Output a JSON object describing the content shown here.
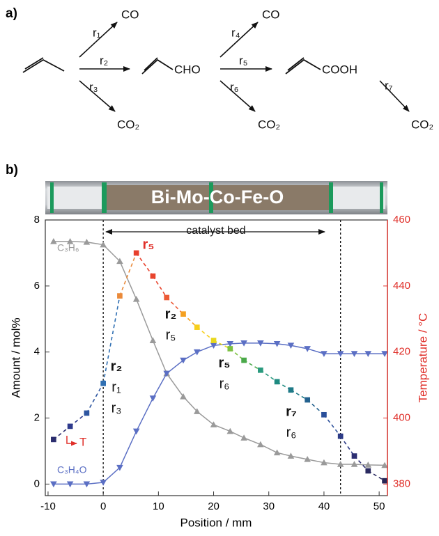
{
  "scheme": {
    "label": "a)",
    "rates": [
      "r₁",
      "r₂",
      "r₃",
      "r₄",
      "r₅",
      "r₆",
      "r₇"
    ],
    "products": [
      "CO",
      "CO₂",
      "CHO",
      "CO",
      "CO₂",
      "COOH",
      "CO₂"
    ]
  },
  "chart_data": {
    "type": "line",
    "panel_label": "b)",
    "photo_label": "Bi-Mo-Co-Fe-O",
    "x_label": "Position / mm",
    "y_label": "Amount / mol%",
    "y2_label": "Temperature / °C",
    "x": [
      -9,
      -6,
      -3,
      0,
      3,
      6,
      9,
      11.5,
      14.5,
      17,
      20,
      23,
      25.5,
      28.5,
      31.5,
      34,
      37,
      40,
      43,
      45.5,
      48,
      51
    ],
    "series": [
      {
        "name": "C₃H₆",
        "color": "#9a9a9a",
        "marker": "triangle-up",
        "values": [
          7.35,
          7.35,
          7.33,
          7.25,
          6.75,
          5.6,
          4.35,
          3.35,
          2.65,
          2.2,
          1.8,
          1.6,
          1.4,
          1.2,
          0.95,
          0.85,
          0.75,
          0.65,
          0.6,
          0.6,
          0.58,
          0.57
        ]
      },
      {
        "name": "C₃H₄O",
        "color": "#5b6fc4",
        "marker": "triangle-down",
        "values": [
          0,
          0,
          0,
          0.05,
          0.5,
          1.6,
          2.6,
          3.35,
          3.75,
          4.0,
          4.2,
          4.25,
          4.27,
          4.27,
          4.25,
          4.2,
          4.1,
          3.95,
          3.95,
          3.95,
          3.95,
          3.95
        ]
      },
      {
        "name": "T",
        "color": "#e0302a",
        "marker": "square",
        "axis": "y2",
        "colors": [
          "#2b2d6e",
          "#2e3a8c",
          "#2d55a0",
          "#2f6fb3",
          "#ea8a3a",
          "#e8402c",
          "#e8452e",
          "#ec5a35",
          "#f5a020",
          "#f7cf1c",
          "#e9d81d",
          "#7dc142",
          "#4aa94a",
          "#2a9a7e",
          "#1e8a80",
          "#1f7a87",
          "#24628f",
          "#2a4f9a",
          "#2d3b87",
          "#2c2e72",
          "#2a2a60",
          "#262656"
        ],
        "values": [
          393.5,
          397.5,
          401.5,
          410.5,
          437,
          450,
          443,
          436.5,
          431.5,
          427.5,
          423.5,
          421,
          417.5,
          414.5,
          411,
          408.5,
          405.5,
          401,
          394.5,
          388.5,
          384,
          381
        ]
      }
    ],
    "xlim": [
      -10.5,
      51.5
    ],
    "xticks": [
      -10,
      0,
      10,
      20,
      30,
      40,
      50
    ],
    "ylim": [
      -0.35,
      8
    ],
    "yticks": [
      0,
      2,
      4,
      6,
      8
    ],
    "y2lim": [
      376.5,
      460
    ],
    "y2ticks": [
      380,
      400,
      420,
      440,
      460
    ],
    "catalyst_bed": [
      0,
      43
    ],
    "catalyst_bed_label": "catalyst bed",
    "annotations": [
      {
        "text": "r₅",
        "bold": true,
        "color": "#e0302a"
      },
      {
        "text": "r₂",
        "bold": true,
        "color": "#111111"
      },
      {
        "text": "r₅",
        "bold": false,
        "color": "#111111"
      },
      {
        "text": "r₂",
        "bold": true,
        "color": "#111111"
      },
      {
        "text": "r₁",
        "bold": false,
        "color": "#111111"
      },
      {
        "text": "r₃",
        "bold": false,
        "color": "#111111"
      },
      {
        "text": "r₅",
        "bold": true,
        "color": "#111111"
      },
      {
        "text": "r₆",
        "bold": false,
        "color": "#111111"
      },
      {
        "text": "r₇",
        "bold": true,
        "color": "#111111"
      },
      {
        "text": "r₆",
        "bold": false,
        "color": "#111111"
      }
    ]
  }
}
